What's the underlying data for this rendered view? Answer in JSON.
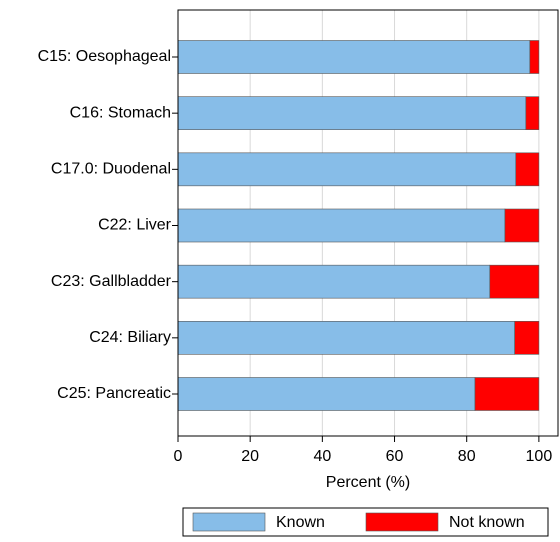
{
  "chart_data": {
    "type": "stacked-bar-horizontal",
    "categories": [
      "C15: Oesophageal",
      "C16: Stomach",
      "C17.0: Duodenal",
      "C22: Liver",
      "C23: Gallbladder",
      "C24: Biliary",
      "C25: Pancreatic"
    ],
    "series": [
      {
        "name": "Known",
        "color": "#87bde8",
        "values": [
          97.5,
          96.4,
          93.6,
          90.6,
          86.4,
          93.3,
          82.3
        ]
      },
      {
        "name": "Not known",
        "color": "#ff0000",
        "values": [
          2.5,
          3.6,
          6.4,
          9.4,
          13.6,
          6.7,
          17.7
        ]
      }
    ],
    "x_label": "Percent (%)",
    "xlim": [
      0,
      105.3
    ],
    "xticks": [
      0,
      20,
      40,
      60,
      80,
      100
    ],
    "grid": true,
    "legend": "bottom"
  }
}
